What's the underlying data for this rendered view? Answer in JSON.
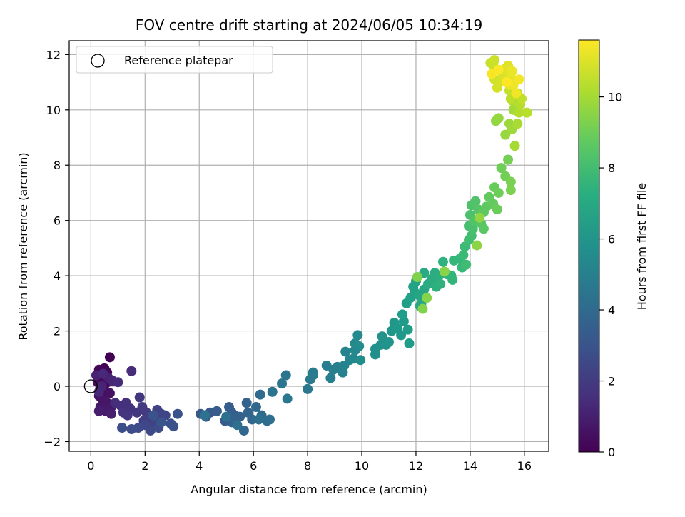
{
  "chart_data": {
    "type": "scatter",
    "title": "FOV centre drift starting at 2024/06/05 10:34:19",
    "xlabel": "Angular distance from reference (arcmin)",
    "ylabel": "Rotation from reference (arcmin)",
    "xlim": [
      -0.8,
      16.9
    ],
    "ylim": [
      -2.35,
      12.5
    ],
    "xticks": [
      0,
      2,
      4,
      6,
      8,
      10,
      12,
      14,
      16
    ],
    "yticks": [
      -2,
      0,
      2,
      4,
      6,
      8,
      10,
      12
    ],
    "grid": true,
    "legend": {
      "position": "top-left",
      "entries": [
        "Reference platepar"
      ]
    },
    "reference_point": {
      "x": 0,
      "y": 0,
      "label": "Reference platepar"
    },
    "colorbar": {
      "label": "Hours from first FF file",
      "range": [
        0,
        11.6
      ],
      "ticks": [
        0,
        2,
        4,
        6,
        8,
        10
      ],
      "colormap": "viridis"
    },
    "series": [
      {
        "points": [
          [
            0.7,
            1.05
          ],
          [
            0.5,
            0.65
          ],
          [
            0.3,
            0.6
          ],
          [
            0.6,
            0.5
          ],
          [
            0.4,
            0.3
          ],
          [
            0.25,
            0.15
          ],
          [
            0.55,
            0.1
          ],
          [
            0.35,
            -0.05
          ],
          [
            0.5,
            -0.2
          ],
          [
            0.7,
            -0.25
          ],
          [
            0.3,
            -0.35
          ],
          [
            0.45,
            -0.5
          ],
          [
            0.6,
            -0.6
          ],
          [
            0.35,
            -0.75
          ],
          [
            0.75,
            -0.75
          ],
          [
            0.55,
            -0.9
          ],
          [
            0.3,
            -0.9
          ],
          [
            0.75,
            -1.0
          ],
          [
            0.65,
            0.3
          ],
          [
            0.2,
            0.4
          ],
          [
            0.4,
            0.0
          ],
          [
            0.8,
            0.2
          ],
          [
            0.3,
            -0.2
          ],
          [
            0.45,
            0.45
          ],
          [
            1.0,
            0.15
          ],
          [
            1.5,
            0.55
          ],
          [
            0.9,
            -0.6
          ],
          [
            1.1,
            -0.7
          ],
          [
            1.3,
            -0.6
          ],
          [
            1.45,
            -0.8
          ],
          [
            1.2,
            -0.95
          ],
          [
            1.7,
            -0.95
          ],
          [
            1.35,
            -1.05
          ],
          [
            1.8,
            -0.4
          ],
          [
            1.9,
            -0.75
          ],
          [
            2.05,
            -0.95
          ],
          [
            2.15,
            -1.1
          ],
          [
            1.95,
            -1.25
          ],
          [
            2.25,
            -1.35
          ],
          [
            2.45,
            -0.85
          ],
          [
            2.4,
            -1.2
          ],
          [
            2.6,
            -1.0
          ],
          [
            2.75,
            -1.05
          ],
          [
            2.0,
            -1.4
          ],
          [
            2.2,
            -1.6
          ],
          [
            2.5,
            -1.5
          ],
          [
            1.75,
            -1.5
          ],
          [
            1.5,
            -1.55
          ],
          [
            1.15,
            -1.5
          ],
          [
            2.95,
            -1.35
          ],
          [
            3.05,
            -1.45
          ],
          [
            3.2,
            -1.0
          ],
          [
            2.3,
            -1.05
          ],
          [
            2.6,
            -1.3
          ],
          [
            4.05,
            -1.0
          ],
          [
            4.25,
            -1.1
          ],
          [
            4.4,
            -0.95
          ],
          [
            4.65,
            -0.9
          ],
          [
            4.95,
            -1.25
          ],
          [
            5.1,
            -0.75
          ],
          [
            5.2,
            -0.95
          ],
          [
            5.3,
            -1.05
          ],
          [
            5.2,
            -1.3
          ],
          [
            5.5,
            -1.1
          ],
          [
            5.75,
            -0.6
          ],
          [
            5.8,
            -0.95
          ],
          [
            5.95,
            -1.2
          ],
          [
            5.65,
            -1.6
          ],
          [
            6.1,
            -0.75
          ],
          [
            6.25,
            -0.3
          ],
          [
            6.3,
            -1.05
          ],
          [
            6.5,
            -1.25
          ],
          [
            6.6,
            -1.2
          ],
          [
            6.2,
            -1.2
          ],
          [
            5.4,
            -1.4
          ],
          [
            5.0,
            -1.1
          ],
          [
            4.2,
            -1.05
          ],
          [
            6.7,
            -0.2
          ],
          [
            7.05,
            0.1
          ],
          [
            7.2,
            0.4
          ],
          [
            7.25,
            -0.45
          ],
          [
            8.0,
            -0.1
          ],
          [
            8.1,
            0.25
          ],
          [
            8.2,
            0.5
          ],
          [
            8.2,
            0.4
          ],
          [
            8.7,
            0.75
          ],
          [
            8.95,
            0.6
          ],
          [
            8.85,
            0.3
          ],
          [
            9.1,
            0.7
          ],
          [
            9.3,
            0.5
          ],
          [
            9.35,
            0.75
          ],
          [
            9.4,
            1.25
          ],
          [
            9.55,
            0.95
          ],
          [
            9.7,
            1.0
          ],
          [
            9.75,
            1.3
          ],
          [
            9.75,
            1.55
          ],
          [
            9.85,
            1.85
          ],
          [
            9.9,
            1.45
          ],
          [
            9.95,
            0.95
          ],
          [
            10.5,
            1.15
          ],
          [
            10.5,
            1.35
          ],
          [
            10.7,
            1.5
          ],
          [
            10.75,
            1.8
          ],
          [
            10.9,
            1.5
          ],
          [
            11.0,
            1.6
          ],
          [
            11.1,
            2.0
          ],
          [
            11.2,
            2.3
          ],
          [
            11.3,
            2.1
          ],
          [
            11.45,
            1.85
          ],
          [
            11.55,
            2.35
          ],
          [
            11.7,
            2.05
          ],
          [
            11.75,
            1.55
          ],
          [
            11.5,
            2.6
          ],
          [
            11.65,
            3.0
          ],
          [
            11.8,
            3.2
          ],
          [
            11.9,
            3.6
          ],
          [
            11.95,
            3.4
          ],
          [
            12.0,
            3.8
          ],
          [
            12.1,
            3.3
          ],
          [
            12.15,
            2.9
          ],
          [
            12.2,
            3.0
          ],
          [
            12.3,
            3.5
          ],
          [
            12.3,
            4.1
          ],
          [
            12.45,
            3.7
          ],
          [
            12.6,
            3.9
          ],
          [
            12.7,
            4.1
          ],
          [
            12.85,
            4.0
          ],
          [
            12.75,
            3.6
          ],
          [
            12.9,
            3.7
          ],
          [
            13.0,
            4.5
          ],
          [
            13.15,
            4.05
          ],
          [
            13.3,
            4.0
          ],
          [
            13.35,
            3.85
          ],
          [
            13.4,
            4.55
          ],
          [
            13.6,
            4.6
          ],
          [
            13.7,
            4.3
          ],
          [
            13.75,
            4.75
          ],
          [
            13.8,
            5.05
          ],
          [
            13.85,
            4.4
          ],
          [
            13.95,
            5.3
          ],
          [
            14.05,
            5.45
          ],
          [
            13.95,
            5.8
          ],
          [
            14.1,
            5.7
          ],
          [
            14.0,
            6.2
          ],
          [
            14.05,
            6.55
          ],
          [
            14.2,
            6.7
          ],
          [
            14.15,
            6.0
          ],
          [
            14.3,
            6.4
          ],
          [
            14.4,
            5.9
          ],
          [
            14.5,
            5.7
          ],
          [
            14.5,
            6.3
          ],
          [
            14.6,
            6.5
          ],
          [
            14.7,
            6.85
          ],
          [
            14.85,
            6.6
          ],
          [
            14.9,
            7.2
          ],
          [
            15.0,
            6.4
          ],
          [
            15.05,
            7.0
          ],
          [
            15.15,
            7.9
          ],
          [
            15.3,
            7.6
          ],
          [
            15.4,
            8.2
          ],
          [
            15.5,
            7.4
          ],
          [
            15.5,
            7.1
          ],
          [
            12.05,
            3.95
          ],
          [
            12.25,
            2.8
          ],
          [
            12.4,
            3.2
          ],
          [
            13.05,
            4.15
          ],
          [
            14.25,
            5.1
          ],
          [
            14.35,
            6.1
          ],
          [
            14.95,
            9.6
          ],
          [
            15.05,
            9.7
          ],
          [
            15.3,
            9.1
          ],
          [
            15.45,
            9.5
          ],
          [
            15.55,
            9.3
          ],
          [
            15.6,
            10.0
          ],
          [
            15.65,
            8.7
          ],
          [
            15.75,
            9.5
          ],
          [
            15.6,
            10.3
          ],
          [
            15.75,
            10.6
          ],
          [
            15.8,
            9.9
          ],
          [
            15.85,
            10.2
          ],
          [
            16.1,
            9.9
          ],
          [
            15.5,
            10.4
          ],
          [
            15.9,
            10.4
          ],
          [
            15.45,
            10.7
          ],
          [
            14.75,
            11.7
          ],
          [
            14.85,
            11.6
          ],
          [
            14.9,
            11.8
          ],
          [
            14.9,
            11.1
          ],
          [
            15.0,
            10.8
          ],
          [
            15.1,
            11.0
          ],
          [
            15.2,
            11.3
          ],
          [
            15.3,
            11.5
          ],
          [
            15.4,
            11.6
          ],
          [
            15.45,
            10.9
          ],
          [
            15.5,
            11.2
          ],
          [
            15.55,
            11.4
          ],
          [
            15.6,
            10.9
          ],
          [
            15.7,
            10.6
          ],
          [
            15.8,
            11.1
          ],
          [
            14.8,
            11.3
          ],
          [
            15.05,
            11.45
          ],
          [
            15.35,
            11.0
          ]
        ]
      }
    ]
  }
}
